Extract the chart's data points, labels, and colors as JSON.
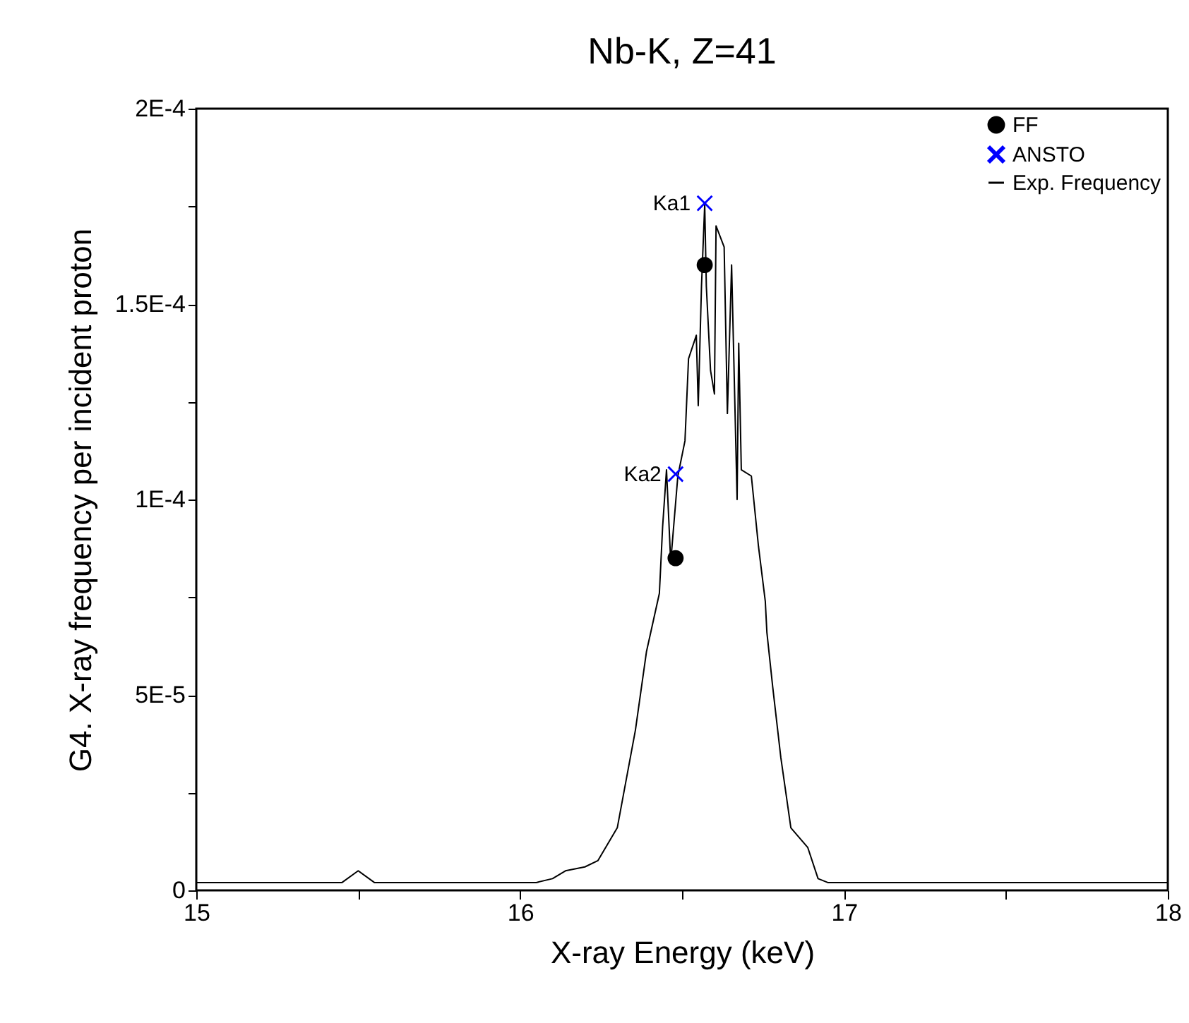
{
  "chart_data": {
    "type": "line",
    "title": "Nb-K, Z=41",
    "xlabel": "X-ray Energy (keV)",
    "ylabel": "G4. X-ray frequency per incident proton",
    "xlim": [
      15,
      18
    ],
    "xticks": [
      15,
      {
        "value": 15.5,
        "label": null
      },
      16,
      {
        "value": 16.5,
        "label": null
      },
      17,
      {
        "value": 17.5,
        "label": null
      },
      18
    ],
    "ylim": [
      0,
      0.0002
    ],
    "yticks": [
      {
        "value": 0,
        "label": "0"
      },
      {
        "value": 2.5e-05,
        "label": null
      },
      {
        "value": 5e-05,
        "label": "5E-5"
      },
      {
        "value": 7.5e-05,
        "label": null
      },
      {
        "value": 0.0001,
        "label": "1E-4"
      },
      {
        "value": 0.000125,
        "label": null
      },
      {
        "value": 0.00015,
        "label": "1.5E-4"
      },
      {
        "value": 0.000175,
        "label": null
      },
      {
        "value": 0.0002,
        "label": "2E-4"
      }
    ],
    "grid": false,
    "legend": "top right",
    "series": [
      {
        "name": "FF",
        "type": "scatter",
        "marker": "circle",
        "color": "#000000",
        "x": [
          16.48,
          16.57
        ],
        "values": [
          8.5e-05,
          0.00016
        ]
      },
      {
        "name": "ANSTO",
        "type": "scatter",
        "marker": "cross",
        "color": "#0000ff",
        "x": [
          16.48,
          16.57
        ],
        "values": [
          0.0001065,
          0.0001758
        ]
      },
      {
        "name": "Exp. Frequency",
        "marker": "none",
        "color": "#000000",
        "x": [
          15.0,
          15.2,
          15.45,
          15.5,
          15.55,
          15.8,
          16.05,
          16.1,
          16.14,
          16.2,
          16.24,
          16.3,
          16.356,
          16.39,
          16.43,
          16.44,
          16.452,
          16.465,
          16.487,
          16.509,
          16.52,
          16.544,
          16.55,
          16.56,
          16.57,
          16.575,
          16.588,
          16.6,
          16.605,
          16.63,
          16.64,
          16.653,
          16.67,
          16.675,
          16.683,
          16.714,
          16.736,
          16.757,
          16.762,
          16.78,
          16.805,
          16.836,
          16.888,
          16.92,
          16.95,
          17.0,
          17.5,
          18.0
        ],
        "values": [
          2e-06,
          2e-06,
          2e-06,
          5e-06,
          2e-06,
          2e-06,
          2e-06,
          3e-06,
          5e-06,
          6e-06,
          7.6e-06,
          1.6e-05,
          4.1e-05,
          6.1e-05,
          7.6e-05,
          9.3e-05,
          0.0001076,
          8.4e-05,
          0.000106,
          0.000115,
          0.000136,
          0.000142,
          0.000124,
          0.0001545,
          0.0001755,
          0.0001545,
          0.000133,
          0.000127,
          0.00017,
          0.0001646,
          0.000122,
          0.00016,
          0.0001,
          0.00014,
          0.0001076,
          0.000106,
          8.8e-05,
          7.4e-05,
          6.6e-05,
          5.2e-05,
          3.4e-05,
          1.6e-05,
          1.1e-05,
          3e-06,
          2e-06,
          2e-06,
          2e-06,
          2e-06
        ]
      }
    ],
    "annotations": [
      {
        "text": "Ka1",
        "x": 16.57,
        "y": 0.0001758
      },
      {
        "text": "Ka2",
        "x": 16.48,
        "y": 0.0001065
      }
    ]
  }
}
